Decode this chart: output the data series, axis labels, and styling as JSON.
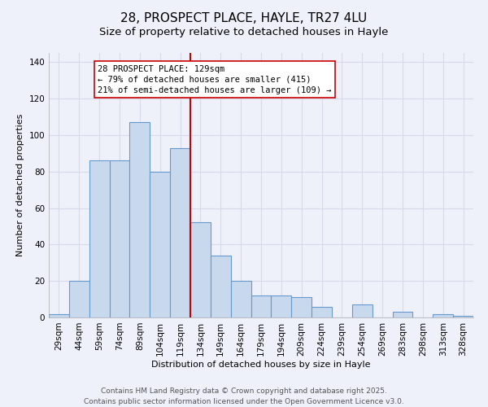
{
  "title": "28, PROSPECT PLACE, HAYLE, TR27 4LU",
  "subtitle": "Size of property relative to detached houses in Hayle",
  "xlabel": "Distribution of detached houses by size in Hayle",
  "ylabel": "Number of detached properties",
  "categories": [
    "29sqm",
    "44sqm",
    "59sqm",
    "74sqm",
    "89sqm",
    "104sqm",
    "119sqm",
    "134sqm",
    "149sqm",
    "164sqm",
    "179sqm",
    "194sqm",
    "209sqm",
    "224sqm",
    "239sqm",
    "254sqm",
    "269sqm",
    "283sqm",
    "298sqm",
    "313sqm",
    "328sqm"
  ],
  "values": [
    2,
    20,
    86,
    86,
    107,
    80,
    93,
    52,
    34,
    20,
    12,
    12,
    11,
    6,
    0,
    7,
    0,
    3,
    0,
    2,
    1
  ],
  "bar_fill_color": "#c8d9ee",
  "bar_edge_color": "#6699cc",
  "vline_x_index": 7,
  "vline_color": "#cc0000",
  "ylim": [
    0,
    145
  ],
  "yticks": [
    0,
    20,
    40,
    60,
    80,
    100,
    120,
    140
  ],
  "annotation_box_text": "28 PROSPECT PLACE: 129sqm\n← 79% of detached houses are smaller (415)\n21% of semi-detached houses are larger (109) →",
  "footer_line1": "Contains HM Land Registry data © Crown copyright and database right 2025.",
  "footer_line2": "Contains public sector information licensed under the Open Government Licence v3.0.",
  "background_color": "#eef0fa",
  "grid_color": "#d8daea",
  "title_fontsize": 11,
  "subtitle_fontsize": 9.5,
  "axis_label_fontsize": 8,
  "tick_fontsize": 7.5,
  "annotation_fontsize": 7.5,
  "footer_fontsize": 6.5
}
